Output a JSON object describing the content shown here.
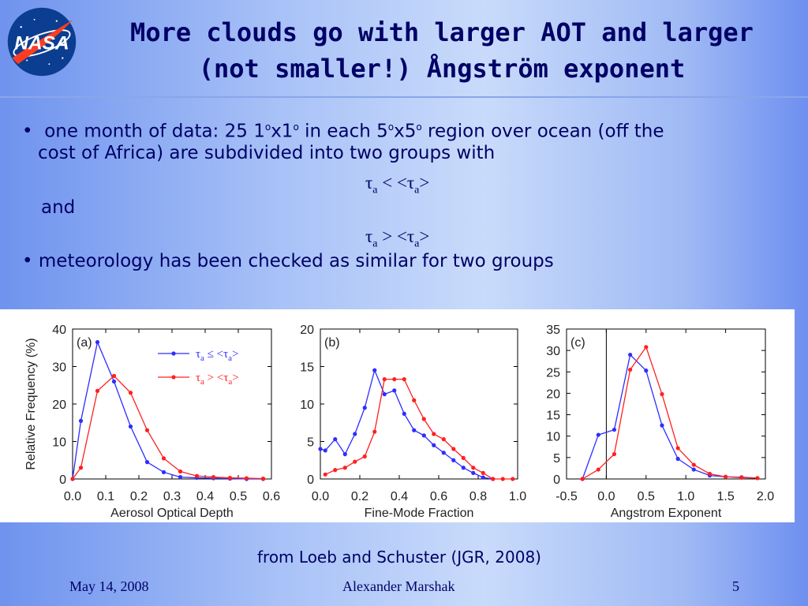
{
  "slide": {
    "title_line1": "More clouds go with larger AOT and larger",
    "title_line2": "(not smaller!) Ångström exponent",
    "logo_text": "NASA",
    "bullet1_a": "one month of data: 25 1",
    "bullet1_sup1": "o",
    "bullet1_b": "x1",
    "bullet1_sup2": "o",
    "bullet1_c": " in each 5",
    "bullet1_sup3": "o",
    "bullet1_d": "x5",
    "bullet1_sup4": "o",
    "bullet1_e": " region over ocean (off the",
    "bullet1_line2": "cost of Africa) are subdivided into two groups with",
    "cond1": {
      "tau": "τ",
      "sub": "a",
      "op": " < <",
      "tau2": "τ",
      "sub2": "a",
      "close": ">"
    },
    "and_text": "and",
    "cond2": {
      "tau": "τ",
      "sub": "a",
      "op": " > <",
      "tau2": "τ",
      "sub2": "a",
      "close": ">"
    },
    "bullet2": "meteorology has been checked as similar for two groups",
    "source": "from Loeb and Schuster (JGR, 2008)",
    "footer_date": "May 14, 2008",
    "footer_author": "Alexander Marshak",
    "footer_page": "5"
  },
  "colors": {
    "blue": "#2d2dff",
    "red": "#ff2020",
    "text": "#000066"
  },
  "chart_data": [
    {
      "type": "line",
      "panel_label": "(a)",
      "xlabel": "Aerosol Optical Depth",
      "ylabel": "Relative Frequency (%)",
      "xlim": [
        0.0,
        0.6
      ],
      "ylim": [
        0,
        40
      ],
      "xticks": [
        "0.0",
        "0.1",
        "0.2",
        "0.3",
        "0.4",
        "0.5",
        "0.6"
      ],
      "yticks": [
        "0",
        "10",
        "20",
        "30",
        "40"
      ],
      "legend": [
        {
          "tau": "τ",
          "sub": "a",
          "op": "≤",
          "ref": "<τ",
          "refsub": "a",
          "close": ">"
        },
        {
          "tau": "τ",
          "sub": "a",
          "op": ">",
          "ref": "<τ",
          "refsub": "a",
          "close": ">"
        }
      ],
      "series": [
        {
          "x": [
            0.0,
            0.025,
            0.075,
            0.125,
            0.175,
            0.225,
            0.275,
            0.325,
            0.375,
            0.425,
            0.475,
            0.525,
            0.575
          ],
          "y": [
            0,
            15.5,
            36.5,
            26,
            14,
            4.5,
            1.8,
            0.5,
            0.3,
            0.2,
            0.1,
            0,
            0
          ]
        },
        {
          "x": [
            0.0,
            0.025,
            0.075,
            0.125,
            0.175,
            0.225,
            0.275,
            0.325,
            0.375,
            0.425,
            0.475,
            0.525,
            0.575
          ],
          "y": [
            0,
            3,
            23.5,
            27.5,
            23,
            13,
            5.5,
            2,
            0.8,
            0.5,
            0.3,
            0.2,
            0.1
          ]
        }
      ]
    },
    {
      "type": "line",
      "panel_label": "(b)",
      "xlabel": "Fine-Mode Fraction",
      "ylabel": "",
      "xlim": [
        0.0,
        1.0
      ],
      "ylim": [
        0,
        20
      ],
      "xticks": [
        "0.0",
        "0.2",
        "0.4",
        "0.6",
        "0.8",
        "1.0"
      ],
      "yticks": [
        "0",
        "5",
        "10",
        "15",
        "20"
      ],
      "series": [
        {
          "x": [
            0.0,
            0.025,
            0.075,
            0.125,
            0.175,
            0.225,
            0.275,
            0.325,
            0.375,
            0.425,
            0.475,
            0.525,
            0.575,
            0.625,
            0.675,
            0.725,
            0.775,
            0.825,
            0.875
          ],
          "y": [
            4,
            3.8,
            5.3,
            3.3,
            6,
            9.5,
            14.5,
            11.3,
            11.8,
            8.7,
            6.5,
            5.8,
            4.5,
            3.5,
            2.5,
            1.5,
            0.8,
            0.2,
            0
          ]
        },
        {
          "x": [
            0.025,
            0.075,
            0.125,
            0.175,
            0.225,
            0.275,
            0.325,
            0.375,
            0.425,
            0.475,
            0.525,
            0.575,
            0.625,
            0.675,
            0.725,
            0.775,
            0.825,
            0.875,
            0.925,
            0.975
          ],
          "y": [
            0.6,
            1.2,
            1.5,
            2.3,
            3,
            6.3,
            13.3,
            13.3,
            13.3,
            10.5,
            8,
            6,
            5.3,
            4,
            2.8,
            1.5,
            0.8,
            0,
            0,
            0
          ]
        }
      ]
    },
    {
      "type": "line",
      "panel_label": "(c)",
      "xlabel": "Angstrom Exponent",
      "ylabel": "",
      "xlim": [
        -0.5,
        2.0
      ],
      "ylim": [
        0,
        35
      ],
      "xticks": [
        "-0.5",
        "0.0",
        "0.5",
        "1.0",
        "1.5",
        "2.0"
      ],
      "yticks": [
        "0",
        "5",
        "10",
        "15",
        "20",
        "25",
        "30",
        "35"
      ],
      "series": [
        {
          "x": [
            -0.3,
            -0.1,
            0.1,
            0.3,
            0.5,
            0.7,
            0.9,
            1.1,
            1.3,
            1.5,
            1.7,
            1.9
          ],
          "y": [
            0,
            10.3,
            11.5,
            29,
            25.3,
            12.5,
            4.7,
            2.2,
            0.8,
            0.5,
            0.4,
            0.2
          ]
        },
        {
          "x": [
            -0.3,
            -0.1,
            0.1,
            0.3,
            0.5,
            0.7,
            0.9,
            1.1,
            1.3,
            1.5,
            1.7,
            1.9
          ],
          "y": [
            0,
            2.2,
            5.8,
            25.5,
            30.8,
            19.8,
            7.2,
            3.3,
            1.2,
            0.5,
            0.3,
            0.2
          ]
        }
      ]
    }
  ]
}
